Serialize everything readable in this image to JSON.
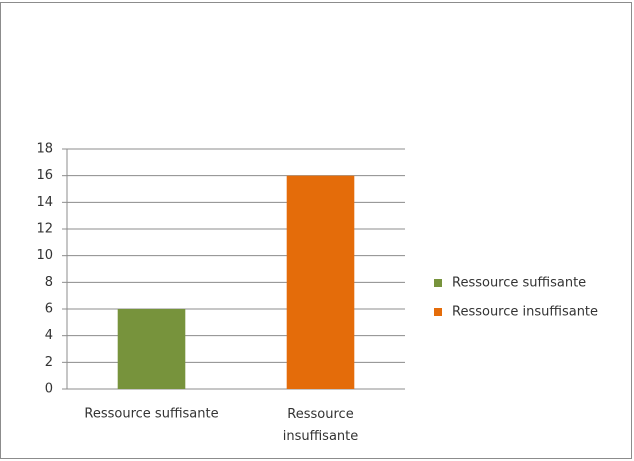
{
  "chart_data": {
    "type": "bar",
    "categories": [
      "Ressource suffisante",
      "Ressource insuffisante"
    ],
    "values": [
      6,
      16
    ],
    "colors": [
      "#77933c",
      "#e46c0a"
    ],
    "ylim": [
      0,
      18
    ],
    "yticks": [
      0,
      2,
      4,
      6,
      8,
      10,
      12,
      14,
      16,
      18
    ],
    "grid": true,
    "legend": "right"
  }
}
